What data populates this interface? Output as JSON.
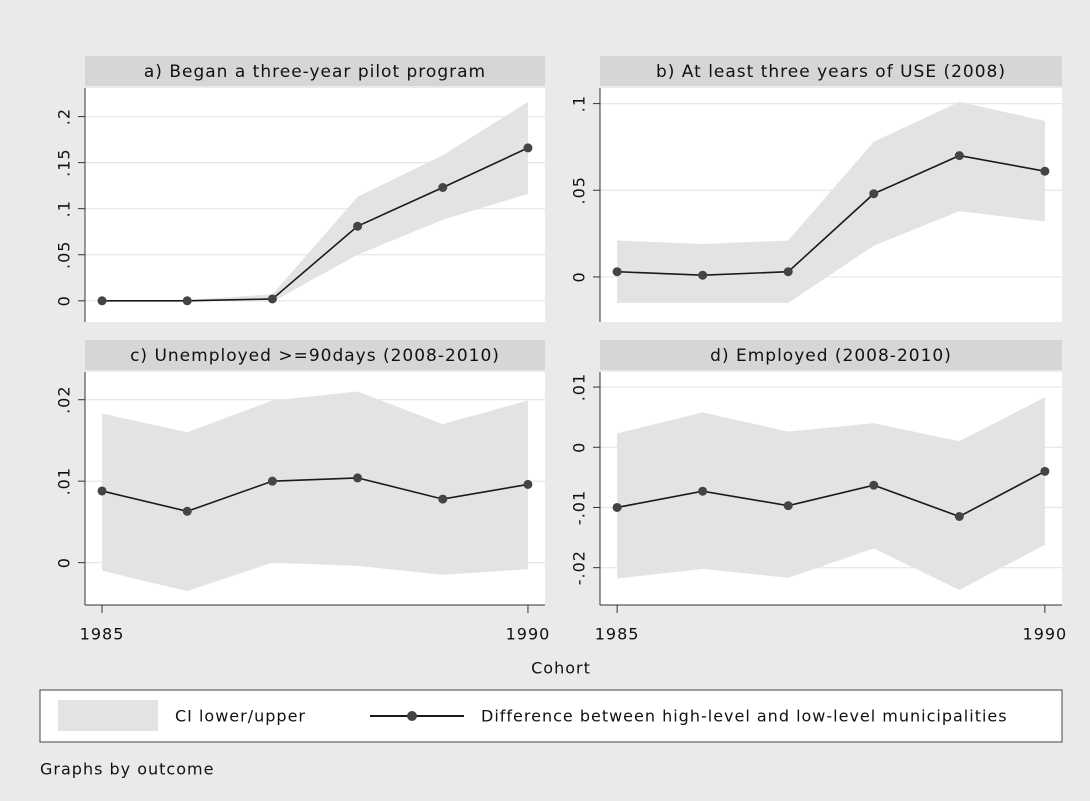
{
  "chart_data": [
    {
      "type": "line",
      "title": "a) Began a three-year pilot program",
      "x": [
        1985,
        1986,
        1987,
        1988,
        1989,
        1990
      ],
      "values": [
        0,
        0,
        0.002,
        0.081,
        0.123,
        0.166
      ],
      "ci_lower": [
        0,
        0,
        -0.001,
        0.05,
        0.088,
        0.116
      ],
      "ci_upper": [
        0,
        0.001,
        0.007,
        0.113,
        0.158,
        0.216
      ],
      "xlim": [
        1984.8,
        1990.2
      ],
      "ylim": [
        -0.023,
        0.231
      ],
      "yticks": [
        0,
        {
          "value": 0.05,
          "label": ".05"
        },
        {
          "value": 0.1,
          "label": ".1"
        },
        {
          "value": 0.15,
          "label": ".15"
        },
        {
          "value": 0.2,
          "label": ".2"
        }
      ],
      "grid": true
    },
    {
      "type": "line",
      "title": "b) At least three years of USE (2008)",
      "x": [
        1985,
        1986,
        1987,
        1988,
        1989,
        1990
      ],
      "values": [
        0.003,
        0.001,
        0.003,
        0.048,
        0.07,
        0.061
      ],
      "ci_lower": [
        -0.015,
        -0.015,
        -0.015,
        0.018,
        0.038,
        0.032
      ],
      "ci_upper": [
        0.021,
        0.019,
        0.021,
        0.078,
        0.101,
        0.09
      ],
      "xlim": [
        1984.8,
        1990.2
      ],
      "ylim": [
        -0.026,
        0.109
      ],
      "yticks": [
        0,
        {
          "value": 0.05,
          "label": ".05"
        },
        {
          "value": 0.1,
          "label": ".1"
        }
      ],
      "grid": true
    },
    {
      "type": "line",
      "title": "c) Unemployed >=90days (2008-2010)",
      "x": [
        1985,
        1986,
        1987,
        1988,
        1989,
        1990
      ],
      "values": [
        0.0088,
        0.0063,
        0.01,
        0.0104,
        0.0078,
        0.0096
      ],
      "ci_lower": [
        -0.001,
        -0.0035,
        0,
        -0.0004,
        -0.0015,
        -0.0008
      ],
      "ci_upper": [
        0.0183,
        0.016,
        0.0199,
        0.021,
        0.017,
        0.0199
      ],
      "xlim": [
        1984.8,
        1990.2
      ],
      "ylim": [
        -0.0052,
        0.0234
      ],
      "xticks": [
        1985,
        1990
      ],
      "yticks": [
        0,
        {
          "value": 0.01,
          "label": ".01"
        },
        {
          "value": 0.02,
          "label": ".02"
        }
      ],
      "grid": true
    },
    {
      "type": "line",
      "title": "d) Employed (2008-2010)",
      "x": [
        1985,
        1986,
        1987,
        1988,
        1989,
        1990
      ],
      "values": [
        -0.01,
        -0.0073,
        -0.0097,
        -0.0063,
        -0.0115,
        -0.004
      ],
      "ci_lower": [
        -0.0218,
        -0.0202,
        -0.0217,
        -0.0168,
        -0.0237,
        -0.0162
      ],
      "ci_upper": [
        0.0023,
        0.0058,
        0.0026,
        0.004,
        0.001,
        0.0083
      ],
      "xlim": [
        1984.8,
        1990.2
      ],
      "ylim": [
        -0.0262,
        0.0125
      ],
      "xticks": [
        1985,
        1990
      ],
      "yticks": [
        {
          "value": -0.02,
          "label": "-.02"
        },
        {
          "value": -0.01,
          "label": "-.01"
        },
        0,
        {
          "value": 0.01,
          "label": ".01"
        }
      ],
      "grid": true
    }
  ],
  "x_label": "Cohort",
  "legend": [
    {
      "name": "CI lower/upper",
      "color": "#e3e3e3"
    },
    {
      "name": "Difference between high-level and low-level municipalities",
      "color": "#1a1a1a"
    }
  ],
  "note": "Graphs by outcome"
}
